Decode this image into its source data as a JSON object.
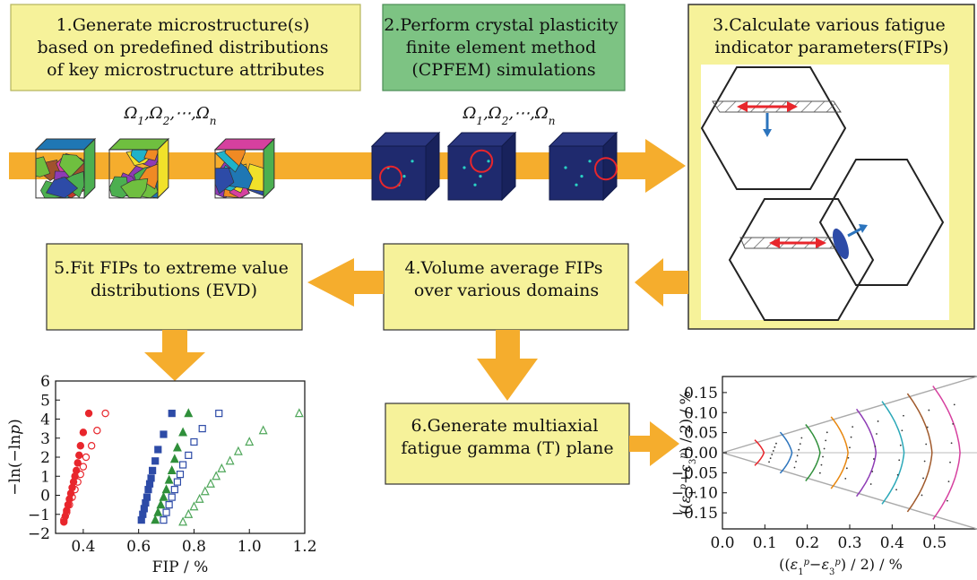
{
  "steps": {
    "s1": [
      "1.Generate microstructure(s)",
      "based on predefined distributions",
      "of key microstructure attributes"
    ],
    "s2": [
      "2.Perform crystal plasticity",
      "finite element method",
      "(CPFEM) simulations"
    ],
    "s3": [
      "3.Calculate various fatigue",
      "indicator parameters(FIPs)"
    ],
    "s4": [
      "4.Volume average FIPs",
      "over various domains"
    ],
    "s5": [
      "5.Fit FIPs to extreme value",
      "distributions (EVD)"
    ],
    "s6": [
      "6.Generate multiaxial",
      "fatigue gamma (T) plane"
    ]
  },
  "omega_label": {
    "text": "Ω",
    "subs": [
      "1",
      "2",
      "n"
    ],
    "sep": ",",
    "dots": "⋯"
  },
  "colors": {
    "box_fill": "#f6f29a",
    "box_green": "#7dc383",
    "arrow": "#f5ad2d",
    "red_series": "#e8262c",
    "blue_series": "#2d4ba7",
    "green_series": "#2f8f3a",
    "light_green_series": "#4fa65a",
    "marker_ring": "#e8262c",
    "vector_blue": "#2c74bd"
  },
  "chart_evd": {
    "xlabel": "FIP / %",
    "ylabel_parts": [
      "−ln(−ln",
      "p",
      ")"
    ],
    "xticks": [
      "0.4",
      "0.6",
      "0.8",
      "1.0",
      "1.2"
    ],
    "yticks": [
      "−2",
      "−1",
      "0",
      "1",
      "2",
      "3",
      "4",
      "5",
      "6"
    ]
  },
  "chart_gamma": {
    "xticks": [
      "0.0",
      "0.1",
      "0.2",
      "0.3",
      "0.4",
      "0.5"
    ],
    "yticks": [
      "0.15",
      "0.10",
      "0.05",
      "0.00",
      "−0.05",
      "−0.10",
      "−0.15"
    ]
  },
  "chart_data": [
    {
      "type": "scatter",
      "xlabel": "FIP / %",
      "ylabel": "−ln(−lnp)",
      "xlim": [
        0.3,
        1.2
      ],
      "ylim": [
        -2,
        6
      ],
      "series": [
        {
          "marker": "filled-circle",
          "color": "#e8262c",
          "x": [
            0.33,
            0.335,
            0.34,
            0.345,
            0.35,
            0.355,
            0.36,
            0.365,
            0.37,
            0.375,
            0.38,
            0.385,
            0.39,
            0.4,
            0.42
          ],
          "y": [
            -1.4,
            -1.1,
            -0.8,
            -0.5,
            -0.2,
            0.1,
            0.4,
            0.7,
            1.0,
            1.3,
            1.7,
            2.1,
            2.6,
            3.3,
            4.3
          ]
        },
        {
          "marker": "open-circle",
          "color": "#e8262c",
          "x": [
            0.33,
            0.34,
            0.35,
            0.36,
            0.37,
            0.38,
            0.39,
            0.4,
            0.41,
            0.43,
            0.45,
            0.48
          ],
          "y": [
            -1.3,
            -0.9,
            -0.5,
            -0.1,
            0.3,
            0.7,
            1.1,
            1.5,
            2.0,
            2.6,
            3.4,
            4.3
          ]
        },
        {
          "marker": "filled-square",
          "color": "#2d4ba7",
          "x": [
            0.61,
            0.615,
            0.62,
            0.625,
            0.63,
            0.635,
            0.64,
            0.645,
            0.65,
            0.66,
            0.67,
            0.69,
            0.72
          ],
          "y": [
            -1.3,
            -1.0,
            -0.7,
            -0.4,
            -0.1,
            0.3,
            0.6,
            0.9,
            1.3,
            1.8,
            2.4,
            3.2,
            4.3
          ]
        },
        {
          "marker": "filled-triangle",
          "color": "#2f8f3a",
          "x": [
            0.66,
            0.67,
            0.68,
            0.69,
            0.7,
            0.71,
            0.72,
            0.73,
            0.74,
            0.76,
            0.78
          ],
          "y": [
            -1.3,
            -0.9,
            -0.5,
            -0.1,
            0.3,
            0.8,
            1.3,
            1.9,
            2.5,
            3.3,
            4.3
          ]
        },
        {
          "marker": "open-square",
          "color": "#2d4ba7",
          "x": [
            0.69,
            0.7,
            0.71,
            0.72,
            0.73,
            0.74,
            0.75,
            0.76,
            0.78,
            0.8,
            0.83,
            0.89
          ],
          "y": [
            -1.3,
            -0.9,
            -0.5,
            -0.1,
            0.3,
            0.7,
            1.1,
            1.6,
            2.1,
            2.8,
            3.5,
            4.3
          ]
        },
        {
          "marker": "open-triangle",
          "color": "#4fa65a",
          "x": [
            0.76,
            0.78,
            0.8,
            0.82,
            0.84,
            0.86,
            0.88,
            0.9,
            0.93,
            0.96,
            1.0,
            1.05,
            1.18
          ],
          "y": [
            -1.4,
            -1.0,
            -0.6,
            -0.2,
            0.2,
            0.6,
            1.0,
            1.4,
            1.8,
            2.3,
            2.8,
            3.4,
            4.3
          ]
        }
      ]
    },
    {
      "type": "line",
      "xlabel": "((ε1p−ε3p)/2)/%",
      "ylabel": "((ε1p+ε3p)/2)/%",
      "xlim": [
        0.0,
        0.6
      ],
      "ylim": [
        -0.19,
        0.19
      ],
      "series": [
        {
          "color": "#e8262c",
          "x0": 0.1
        },
        {
          "color": "#2c74bd",
          "x0": 0.16
        },
        {
          "color": "#2f8f3a",
          "x0": 0.22
        },
        {
          "color": "#e8870f",
          "x0": 0.28
        },
        {
          "color": "#8e3bb5",
          "x0": 0.34
        },
        {
          "color": "#2aa8b8",
          "x0": 0.4
        },
        {
          "color": "#a05a2c",
          "x0": 0.46
        },
        {
          "color": "#d6409f",
          "x0": 0.52
        }
      ]
    }
  ]
}
